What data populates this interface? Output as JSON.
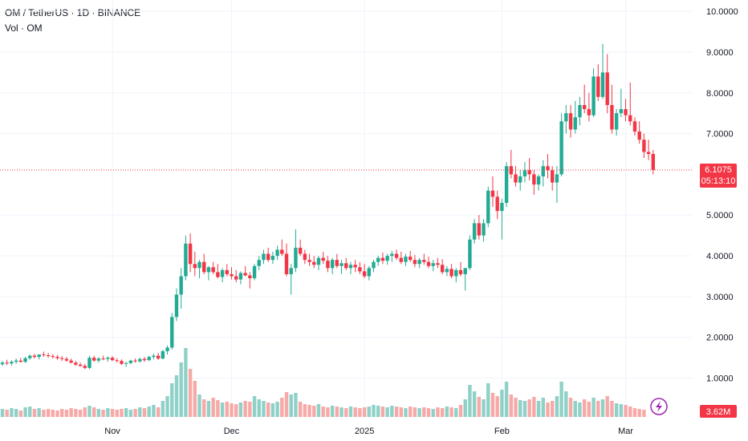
{
  "header": {
    "symbol_line": "OM / TetherUS · 1D · BINANCE",
    "volume_line": "Vol · OM"
  },
  "colors": {
    "up": "#22ab94",
    "down": "#f23645",
    "up_volume": "#8fd1c7",
    "down_volume": "#f7a9a7",
    "grid": "#f0f3fa",
    "axis_text": "#131722",
    "price_line": "#f23645",
    "flash_icon": "#9c27b0"
  },
  "icons": {
    "bolt": "lightning-bolt-icon"
  },
  "chart_data": {
    "type": "candlestick",
    "title": "OM / TetherUS · 1D · BINANCE",
    "subtitle": "Vol · OM",
    "y_axis": {
      "ticks": [
        "10.0000",
        "9.0000",
        "8.0000",
        "7.0000",
        "5.0000",
        "4.0000",
        "3.0000",
        "2.0000",
        "1.0000"
      ],
      "range": [
        0.48,
        10.12
      ]
    },
    "x_axis": {
      "ticks": [
        "Nov",
        "Dec",
        "2025",
        "Feb",
        "Mar"
      ],
      "tick_candle_index": [
        24,
        50,
        79,
        109,
        136
      ]
    },
    "last_price": {
      "value": 6.1075,
      "label": "6.1075",
      "countdown": "05:13:10"
    },
    "last_volume_label": "3.62M",
    "volume_range": [
      0,
      9
    ],
    "candles": [
      [
        1.34,
        1.42,
        1.3,
        1.38
      ],
      [
        1.38,
        1.45,
        1.32,
        1.36
      ],
      [
        1.36,
        1.44,
        1.31,
        1.4
      ],
      [
        1.4,
        1.48,
        1.35,
        1.43
      ],
      [
        1.43,
        1.5,
        1.38,
        1.4
      ],
      [
        1.4,
        1.52,
        1.37,
        1.49
      ],
      [
        1.49,
        1.58,
        1.45,
        1.55
      ],
      [
        1.55,
        1.6,
        1.48,
        1.52
      ],
      [
        1.52,
        1.56,
        1.46,
        1.58
      ],
      [
        1.58,
        1.65,
        1.52,
        1.56
      ],
      [
        1.56,
        1.62,
        1.5,
        1.54
      ],
      [
        1.54,
        1.59,
        1.48,
        1.52
      ],
      [
        1.52,
        1.57,
        1.45,
        1.49
      ],
      [
        1.49,
        1.54,
        1.42,
        1.47
      ],
      [
        1.47,
        1.52,
        1.4,
        1.43
      ],
      [
        1.43,
        1.48,
        1.36,
        1.38
      ],
      [
        1.38,
        1.42,
        1.3,
        1.33
      ],
      [
        1.33,
        1.38,
        1.28,
        1.3
      ],
      [
        1.3,
        1.35,
        1.22,
        1.25
      ],
      [
        1.25,
        1.55,
        1.22,
        1.5
      ],
      [
        1.5,
        1.55,
        1.4,
        1.43
      ],
      [
        1.43,
        1.52,
        1.38,
        1.48
      ],
      [
        1.48,
        1.55,
        1.44,
        1.47
      ],
      [
        1.47,
        1.53,
        1.4,
        1.5
      ],
      [
        1.5,
        1.54,
        1.42,
        1.44
      ],
      [
        1.44,
        1.49,
        1.38,
        1.42
      ],
      [
        1.42,
        1.46,
        1.32,
        1.35
      ],
      [
        1.35,
        1.4,
        1.28,
        1.37
      ],
      [
        1.37,
        1.45,
        1.34,
        1.43
      ],
      [
        1.43,
        1.48,
        1.38,
        1.41
      ],
      [
        1.41,
        1.5,
        1.38,
        1.47
      ],
      [
        1.47,
        1.52,
        1.4,
        1.44
      ],
      [
        1.44,
        1.55,
        1.42,
        1.52
      ],
      [
        1.52,
        1.6,
        1.46,
        1.55
      ],
      [
        1.55,
        1.62,
        1.45,
        1.48
      ],
      [
        1.48,
        1.7,
        1.46,
        1.66
      ],
      [
        1.66,
        1.8,
        1.58,
        1.75
      ],
      [
        1.75,
        2.6,
        1.7,
        2.5
      ],
      [
        2.5,
        3.2,
        2.4,
        3.05
      ],
      [
        3.05,
        3.7,
        2.7,
        3.5
      ],
      [
        3.5,
        4.5,
        3.4,
        4.3
      ],
      [
        4.3,
        4.55,
        3.6,
        3.8
      ],
      [
        3.8,
        4.1,
        3.5,
        3.7
      ],
      [
        3.7,
        3.9,
        3.45,
        3.85
      ],
      [
        3.85,
        4.05,
        3.55,
        3.6
      ],
      [
        3.6,
        3.75,
        3.4,
        3.72
      ],
      [
        3.72,
        3.85,
        3.55,
        3.6
      ],
      [
        3.6,
        3.8,
        3.45,
        3.48
      ],
      [
        3.48,
        3.7,
        3.35,
        3.65
      ],
      [
        3.65,
        3.8,
        3.5,
        3.55
      ],
      [
        3.55,
        3.72,
        3.42,
        3.5
      ],
      [
        3.5,
        3.65,
        3.35,
        3.42
      ],
      [
        3.42,
        3.62,
        3.3,
        3.58
      ],
      [
        3.58,
        3.75,
        3.5,
        3.52
      ],
      [
        3.52,
        3.6,
        3.2,
        3.45
      ],
      [
        3.45,
        3.8,
        3.4,
        3.75
      ],
      [
        3.75,
        4.0,
        3.65,
        3.9
      ],
      [
        3.9,
        4.15,
        3.8,
        4.05
      ],
      [
        4.05,
        4.2,
        3.85,
        3.9
      ],
      [
        3.9,
        4.1,
        3.8,
        4.0
      ],
      [
        4.0,
        4.25,
        3.9,
        4.15
      ],
      [
        4.15,
        4.4,
        4.0,
        4.05
      ],
      [
        4.05,
        4.3,
        3.5,
        3.55
      ],
      [
        3.55,
        3.8,
        3.05,
        3.7
      ],
      [
        3.7,
        4.65,
        3.6,
        4.2
      ],
      [
        4.2,
        4.4,
        4.0,
        4.05
      ],
      [
        4.05,
        4.15,
        3.8,
        3.9
      ],
      [
        3.9,
        4.05,
        3.75,
        3.85
      ],
      [
        3.85,
        4.0,
        3.7,
        3.78
      ],
      [
        3.78,
        4.0,
        3.65,
        3.95
      ],
      [
        3.95,
        4.1,
        3.8,
        3.88
      ],
      [
        3.88,
        4.0,
        3.6,
        3.7
      ],
      [
        3.7,
        3.95,
        3.55,
        3.9
      ],
      [
        3.9,
        4.05,
        3.7,
        3.75
      ],
      [
        3.75,
        3.9,
        3.55,
        3.82
      ],
      [
        3.82,
        3.95,
        3.65,
        3.7
      ],
      [
        3.7,
        3.85,
        3.55,
        3.78
      ],
      [
        3.78,
        3.9,
        3.6,
        3.72
      ],
      [
        3.72,
        3.85,
        3.55,
        3.62
      ],
      [
        3.62,
        3.8,
        3.45,
        3.5
      ],
      [
        3.5,
        3.75,
        3.4,
        3.7
      ],
      [
        3.7,
        3.9,
        3.6,
        3.85
      ],
      [
        3.85,
        4.0,
        3.75,
        3.95
      ],
      [
        3.95,
        4.08,
        3.8,
        3.88
      ],
      [
        3.88,
        4.05,
        3.78,
        4.0
      ],
      [
        4.0,
        4.12,
        3.85,
        4.05
      ],
      [
        4.05,
        4.15,
        3.9,
        3.95
      ],
      [
        3.95,
        4.1,
        3.8,
        3.85
      ],
      [
        3.85,
        4.05,
        3.75,
        3.98
      ],
      [
        3.98,
        4.12,
        3.85,
        3.9
      ],
      [
        3.9,
        4.02,
        3.72,
        3.8
      ],
      [
        3.8,
        3.95,
        3.7,
        3.9
      ],
      [
        3.9,
        4.05,
        3.78,
        3.85
      ],
      [
        3.85,
        3.98,
        3.7,
        3.75
      ],
      [
        3.75,
        3.9,
        3.62,
        3.82
      ],
      [
        3.82,
        3.95,
        3.7,
        3.78
      ],
      [
        3.78,
        3.92,
        3.55,
        3.6
      ],
      [
        3.6,
        3.75,
        3.5,
        3.68
      ],
      [
        3.68,
        3.8,
        3.45,
        3.5
      ],
      [
        3.5,
        3.7,
        3.35,
        3.65
      ],
      [
        3.65,
        3.85,
        3.5,
        3.55
      ],
      [
        3.55,
        3.7,
        3.15,
        3.7
      ],
      [
        3.7,
        4.5,
        3.65,
        4.4
      ],
      [
        4.4,
        4.9,
        4.3,
        4.8
      ],
      [
        4.8,
        5.0,
        4.4,
        4.5
      ],
      [
        4.5,
        4.9,
        4.35,
        4.8
      ],
      [
        4.8,
        5.7,
        4.7,
        5.6
      ],
      [
        5.6,
        5.95,
        5.2,
        5.45
      ],
      [
        5.45,
        5.6,
        4.9,
        5.1
      ],
      [
        5.1,
        5.4,
        4.4,
        5.3
      ],
      [
        5.3,
        6.3,
        5.2,
        6.2
      ],
      [
        6.2,
        6.6,
        5.9,
        6.0
      ],
      [
        6.0,
        6.2,
        5.7,
        5.8
      ],
      [
        5.8,
        6.1,
        5.6,
        5.95
      ],
      [
        5.95,
        6.3,
        5.8,
        6.1
      ],
      [
        6.1,
        6.4,
        5.85,
        6.0
      ],
      [
        6.0,
        6.1,
        5.5,
        5.75
      ],
      [
        5.75,
        6.0,
        5.6,
        5.95
      ],
      [
        5.95,
        6.35,
        5.7,
        6.2
      ],
      [
        6.2,
        6.5,
        5.9,
        6.1
      ],
      [
        6.1,
        6.2,
        5.6,
        5.8
      ],
      [
        5.8,
        6.2,
        5.3,
        6.0
      ],
      [
        6.0,
        7.5,
        5.95,
        7.3
      ],
      [
        7.3,
        7.7,
        7.0,
        7.5
      ],
      [
        7.5,
        7.7,
        6.9,
        7.1
      ],
      [
        7.1,
        7.8,
        7.0,
        7.4
      ],
      [
        7.4,
        7.9,
        7.2,
        7.7
      ],
      [
        7.7,
        8.2,
        7.5,
        7.6
      ],
      [
        7.6,
        8.0,
        7.3,
        7.45
      ],
      [
        7.45,
        8.6,
        7.4,
        8.4
      ],
      [
        8.4,
        8.7,
        7.8,
        7.9
      ],
      [
        7.9,
        9.2,
        7.85,
        8.5
      ],
      [
        8.5,
        8.95,
        7.5,
        7.7
      ],
      [
        7.7,
        8.2,
        7.0,
        7.1
      ],
      [
        7.1,
        7.6,
        6.95,
        7.5
      ],
      [
        7.5,
        8.1,
        7.4,
        7.6
      ],
      [
        7.6,
        7.85,
        7.3,
        7.45
      ],
      [
        7.45,
        8.25,
        7.2,
        7.3
      ],
      [
        7.3,
        7.4,
        6.95,
        7.05
      ],
      [
        7.05,
        7.3,
        6.75,
        6.85
      ],
      [
        6.85,
        7.0,
        6.4,
        6.55
      ],
      [
        6.55,
        6.85,
        6.35,
        6.5
      ],
      [
        6.5,
        6.6,
        6.0,
        6.1075
      ]
    ],
    "volumes": [
      1.0,
      0.9,
      1.1,
      1.0,
      0.8,
      1.2,
      1.3,
      1.0,
      1.1,
      0.9,
      1.0,
      0.9,
      0.8,
      1.0,
      0.9,
      1.1,
      1.0,
      0.9,
      1.2,
      1.4,
      1.2,
      1.0,
      0.9,
      1.1,
      1.0,
      0.9,
      1.0,
      1.1,
      0.9,
      1.0,
      1.2,
      1.1,
      1.3,
      1.5,
      1.2,
      2.0,
      2.6,
      4.2,
      5.2,
      6.8,
      8.6,
      6.0,
      4.5,
      2.8,
      2.2,
      2.0,
      2.4,
      2.1,
      1.8,
      1.9,
      1.7,
      1.6,
      1.8,
      2.0,
      1.9,
      2.6,
      2.2,
      2.0,
      1.8,
      1.7,
      1.9,
      2.4,
      3.1,
      2.8,
      3.0,
      1.9,
      1.6,
      1.5,
      1.4,
      1.6,
      1.3,
      1.2,
      1.4,
      1.3,
      1.2,
      1.1,
      1.3,
      1.2,
      1.1,
      1.2,
      1.3,
      1.5,
      1.4,
      1.3,
      1.2,
      1.4,
      1.3,
      1.2,
      1.1,
      1.3,
      1.2,
      1.1,
      1.2,
      1.1,
      1.0,
      1.2,
      1.1,
      1.3,
      1.2,
      1.1,
      1.5,
      2.2,
      4.0,
      3.2,
      2.5,
      2.2,
      4.2,
      3.0,
      2.6,
      3.4,
      4.4,
      2.8,
      2.4,
      2.1,
      2.0,
      2.2,
      2.5,
      2.0,
      2.4,
      1.8,
      2.0,
      2.6,
      4.4,
      3.2,
      2.4,
      2.0,
      1.8,
      2.2,
      1.9,
      2.4,
      2.0,
      2.2,
      2.6,
      2.0,
      1.7,
      1.6,
      1.5,
      1.3,
      1.1,
      1.0,
      0.9
    ]
  }
}
